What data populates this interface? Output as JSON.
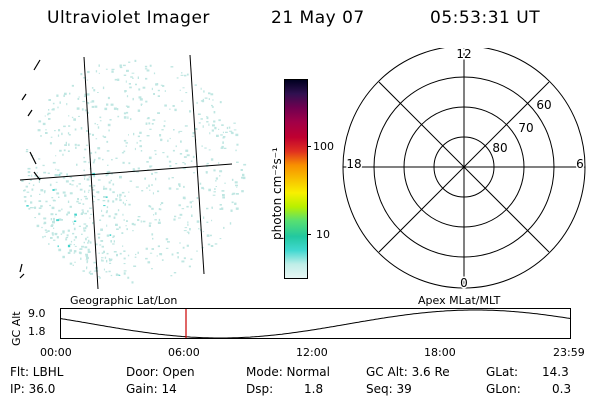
{
  "header": {
    "instrument": "Ultraviolet Imager",
    "date": "21 May 07",
    "time": "05:53:31 UT"
  },
  "colorbar": {
    "unit_label": "photon cm⁻²s⁻¹",
    "tick_labels": [
      "100",
      "10"
    ],
    "scale": "log",
    "colors": [
      "#e8f6f4",
      "#bfeee8",
      "#40d8d0",
      "#22c8a0",
      "#58e070",
      "#b8f000",
      "#f8f000",
      "#f8c000",
      "#f89000",
      "#e03020",
      "#c00030",
      "#a00048",
      "#700050",
      "#301050",
      "#000020"
    ]
  },
  "polar_plot": {
    "clock_labels": [
      "12",
      "18",
      "6",
      "0"
    ],
    "lat_labels": [
      "60",
      "70",
      "80"
    ]
  },
  "labels": {
    "geo": "Geographic Lat/Lon",
    "apex": "Apex MLat/MLT"
  },
  "altitude_plot": {
    "ylabel": "GC Alt",
    "yticks": [
      "9.0",
      "1.8"
    ],
    "xticks": [
      "00:00",
      "06:00",
      "12:00",
      "18:00",
      "23:59"
    ],
    "current_time": "05:53"
  },
  "footer": {
    "flt": "Flt: LBHL",
    "ip": "IP: 36.0",
    "door": "Door: Open",
    "gain": "Gain: 14",
    "mode": "Mode: Normal",
    "dsp": "Dsp:",
    "dsp_value": "1.8",
    "gc_alt": "GC Alt: 3.6 Re",
    "seq": "Seq: 39",
    "glat": "GLat:",
    "glat_value": "14.3",
    "glon": "GLon:",
    "glon_value": "0.3"
  },
  "colors": {
    "marker": "#cc0000",
    "speckle": "#bfe6e2",
    "speckle_bright": "#40d4cc"
  }
}
